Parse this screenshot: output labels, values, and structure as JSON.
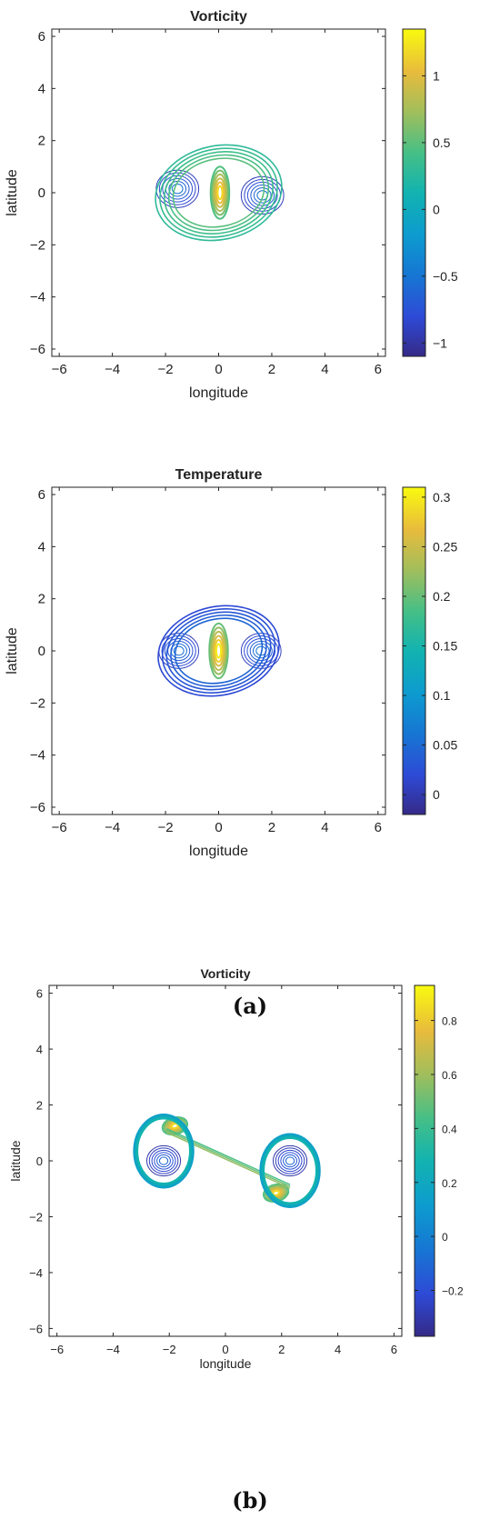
{
  "panels": [
    {
      "chart_data": {
        "type": "contour",
        "title": "Vorticity",
        "xlabel": "longitude",
        "ylabel": "latitude",
        "xlim": [
          -6.28,
          6.28
        ],
        "ylim": [
          -6.28,
          6.28
        ],
        "xticks": [
          -6,
          -4,
          -2,
          0,
          2,
          4,
          6
        ],
        "yticks": [
          -6,
          -4,
          -2,
          0,
          2,
          4,
          6
        ],
        "colorbar": {
          "min": -1.1,
          "max": 1.35,
          "ticks": [
            -1,
            -0.5,
            0,
            0.5,
            1
          ]
        },
        "structure": "single core with positive maximum near the origin, elongated vertically (about x 0..0.3, y -1..1), wrapped by vortex pair centered near (-1.6, 0.1) and (1.6, -0.1) within radius ~2.4",
        "features": [
          {
            "kind": "core",
            "x": 0.05,
            "y": 0.0,
            "rx": 0.35,
            "ry": 1.0,
            "value": 1.2
          },
          {
            "kind": "eddy",
            "x": -1.55,
            "y": 0.15,
            "r": 0.8,
            "value": -0.9
          },
          {
            "kind": "eddy",
            "x": 1.65,
            "y": -0.1,
            "r": 0.8,
            "value": -0.9
          },
          {
            "kind": "envelope",
            "x": 0.0,
            "y": 0.0,
            "rx": 2.4,
            "ry": 1.8,
            "value": 0.3
          }
        ]
      },
      "caption": ""
    },
    {
      "chart_data": {
        "type": "contour",
        "title": "Temperature",
        "xlabel": "longitude",
        "ylabel": "latitude",
        "xlim": [
          -6.28,
          6.28
        ],
        "ylim": [
          -6.28,
          6.28
        ],
        "xticks": [
          -6,
          -4,
          -2,
          0,
          2,
          4,
          6
        ],
        "yticks": [
          -6,
          -4,
          -2,
          0,
          2,
          4,
          6
        ],
        "colorbar": {
          "min": -0.02,
          "max": 0.31,
          "ticks": [
            0,
            0.05,
            0.1,
            0.15,
            0.2,
            0.25,
            0.3
          ]
        },
        "features": [
          {
            "kind": "core",
            "x": 0.0,
            "y": 0.0,
            "rx": 0.35,
            "ry": 1.05,
            "value": 0.3
          },
          {
            "kind": "eddy",
            "x": -1.5,
            "y": 0.0,
            "r": 0.75,
            "value": 0.01
          },
          {
            "kind": "eddy",
            "x": 1.6,
            "y": 0.0,
            "r": 0.75,
            "value": 0.01
          },
          {
            "kind": "envelope",
            "x": 0.0,
            "y": 0.0,
            "rx": 2.3,
            "ry": 1.7,
            "value": 0.02
          }
        ]
      },
      "caption": "(a)"
    },
    {
      "chart_data": {
        "type": "contour",
        "title": "Vorticity",
        "xlabel": "longitude",
        "ylabel": "latitude",
        "xlim": [
          -6.28,
          6.28
        ],
        "ylim": [
          -6.28,
          6.28
        ],
        "xticks": [
          -6,
          -4,
          -2,
          0,
          2,
          4,
          6
        ],
        "yticks": [
          -6,
          -4,
          -2,
          0,
          2,
          4,
          6
        ],
        "colorbar": {
          "min": -0.37,
          "max": 0.93,
          "ticks": [
            -0.2,
            0,
            0.2,
            0.4,
            0.6,
            0.8
          ]
        },
        "features": [
          {
            "kind": "blob",
            "x": -1.8,
            "y": 1.25,
            "rx": 0.45,
            "ry": 0.3,
            "value": 0.85
          },
          {
            "kind": "blob",
            "x": 1.8,
            "y": -1.15,
            "rx": 0.45,
            "ry": 0.3,
            "value": 0.85
          },
          {
            "kind": "filament",
            "from": [
              -2.1,
              1.15
            ],
            "to": [
              2.3,
              -0.85
            ],
            "value": 0.45
          },
          {
            "kind": "arc",
            "x": -2.2,
            "y": 0.35,
            "rx": 1.05,
            "ry": 1.3,
            "value": 0.15
          },
          {
            "kind": "arc",
            "x": 2.3,
            "y": -0.35,
            "rx": 1.05,
            "ry": 1.3,
            "value": 0.15
          },
          {
            "kind": "eddy",
            "x": -2.2,
            "y": 0.0,
            "r": 0.6,
            "value": -0.3
          },
          {
            "kind": "eddy",
            "x": 2.3,
            "y": 0.0,
            "r": 0.6,
            "value": -0.3
          }
        ]
      },
      "caption": "(b)"
    }
  ]
}
